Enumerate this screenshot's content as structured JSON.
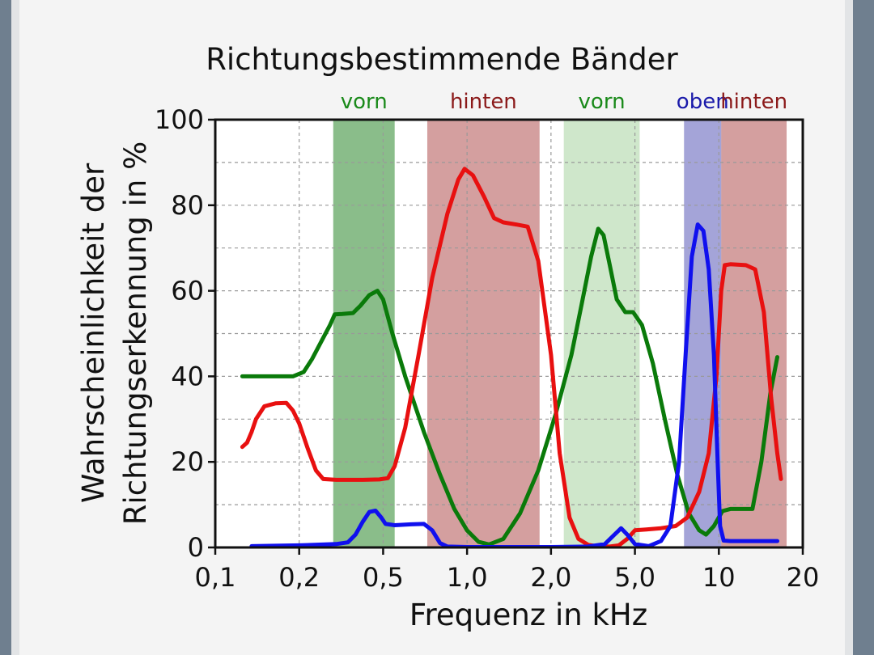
{
  "chart_data": {
    "type": "line",
    "title": "Richtungsbestimmende Bänder",
    "xlabel": "Frequenz in kHz",
    "ylabel_lines": [
      "Wahrscheinlichkeit der",
      "Richtungserkennung in %"
    ],
    "x_scale": "log",
    "ylim": [
      0,
      100
    ],
    "grid": true,
    "x_ticks": [
      {
        "value": 0.1,
        "label": "0,1"
      },
      {
        "value": 0.2,
        "label": "0,2"
      },
      {
        "value": 0.5,
        "label": "0,5"
      },
      {
        "value": 1.0,
        "label": "1,0"
      },
      {
        "value": 2.0,
        "label": "2,0"
      },
      {
        "value": 5.0,
        "label": "5,0"
      },
      {
        "value": 10,
        "label": "10"
      },
      {
        "value": 20,
        "label": "20"
      }
    ],
    "y_ticks": [
      {
        "value": 0,
        "label": "0"
      },
      {
        "value": 20,
        "label": "20"
      },
      {
        "value": 40,
        "label": "40"
      },
      {
        "value": 60,
        "label": "60"
      },
      {
        "value": 80,
        "label": "80"
      },
      {
        "value": 100,
        "label": "100"
      }
    ],
    "bands": [
      {
        "label": "vorn",
        "from": 0.29,
        "to": 0.55,
        "color": "#4c9a4c",
        "opacity": 0.65,
        "text_color": "#1a8a1a"
      },
      {
        "label": "hinten",
        "from": 0.72,
        "to": 1.82,
        "color": "#a02a2a",
        "opacity": 0.45,
        "text_color": "#8b1a1a"
      },
      {
        "label": "vorn",
        "from": 2.3,
        "to": 5.2,
        "color": "#a8d4a0",
        "opacity": 0.55,
        "text_color": "#1a8a1a"
      },
      {
        "label": "oben",
        "from": 7.5,
        "to": 10.2,
        "color": "#5a5ab8",
        "opacity": 0.55,
        "text_color": "#1a1aaa"
      },
      {
        "label": "hinten",
        "from": 10.2,
        "to": 17.5,
        "color": "#a02a2a",
        "opacity": 0.45,
        "text_color": "#8b1a1a"
      }
    ],
    "series": [
      {
        "color": "#0a7a0a",
        "points": [
          [
            0.125,
            40
          ],
          [
            0.16,
            40
          ],
          [
            0.19,
            40
          ],
          [
            0.21,
            41
          ],
          [
            0.23,
            44
          ],
          [
            0.26,
            49
          ],
          [
            0.28,
            52
          ],
          [
            0.295,
            54.5
          ],
          [
            0.32,
            54.6
          ],
          [
            0.36,
            54.8
          ],
          [
            0.39,
            56.5
          ],
          [
            0.43,
            59
          ],
          [
            0.47,
            60
          ],
          [
            0.5,
            58
          ],
          [
            0.54,
            50
          ],
          [
            0.6,
            40
          ],
          [
            0.7,
            27
          ],
          [
            0.8,
            17
          ],
          [
            0.9,
            9
          ],
          [
            1.0,
            4
          ],
          [
            1.1,
            1.3
          ],
          [
            1.2,
            0.7
          ],
          [
            1.35,
            2
          ],
          [
            1.55,
            8
          ],
          [
            1.8,
            18
          ],
          [
            2.1,
            31
          ],
          [
            2.5,
            45
          ],
          [
            2.8,
            57
          ],
          [
            3.1,
            68
          ],
          [
            3.35,
            74.5
          ],
          [
            3.55,
            73
          ],
          [
            3.8,
            66
          ],
          [
            4.1,
            58
          ],
          [
            4.5,
            55
          ],
          [
            4.9,
            55
          ],
          [
            5.3,
            52
          ],
          [
            5.8,
            43
          ],
          [
            6.4,
            30
          ],
          [
            7.1,
            17
          ],
          [
            7.8,
            8
          ],
          [
            8.5,
            4
          ],
          [
            9.0,
            3
          ],
          [
            9.6,
            5
          ],
          [
            10.3,
            8.5
          ],
          [
            11,
            9
          ],
          [
            12.5,
            9
          ],
          [
            13.2,
            9
          ],
          [
            14.2,
            20
          ],
          [
            15.3,
            36
          ],
          [
            16.2,
            44.5
          ]
        ]
      },
      {
        "color": "#e81010",
        "points": [
          [
            0.125,
            23.5
          ],
          [
            0.13,
            24.5
          ],
          [
            0.135,
            27
          ],
          [
            0.14,
            30
          ],
          [
            0.15,
            33
          ],
          [
            0.165,
            33.7
          ],
          [
            0.18,
            33.8
          ],
          [
            0.19,
            32
          ],
          [
            0.2,
            29
          ],
          [
            0.22,
            23
          ],
          [
            0.24,
            18
          ],
          [
            0.26,
            16
          ],
          [
            0.3,
            15.8
          ],
          [
            0.4,
            15.8
          ],
          [
            0.48,
            15.9
          ],
          [
            0.52,
            16.2
          ],
          [
            0.55,
            19
          ],
          [
            0.6,
            28
          ],
          [
            0.67,
            45
          ],
          [
            0.75,
            63
          ],
          [
            0.85,
            78
          ],
          [
            0.93,
            86
          ],
          [
            0.98,
            88.5
          ],
          [
            1.05,
            87
          ],
          [
            1.15,
            82
          ],
          [
            1.25,
            77
          ],
          [
            1.35,
            76
          ],
          [
            1.5,
            75.5
          ],
          [
            1.65,
            75
          ],
          [
            1.8,
            67
          ],
          [
            2.0,
            45
          ],
          [
            2.2,
            22
          ],
          [
            2.45,
            7
          ],
          [
            2.7,
            2
          ],
          [
            3.0,
            0.6
          ],
          [
            3.4,
            0.2
          ],
          [
            3.8,
            0.2
          ],
          [
            4.2,
            0.5
          ],
          [
            4.6,
            2
          ],
          [
            5.0,
            4
          ],
          [
            5.5,
            4.2
          ],
          [
            6.2,
            4.5
          ],
          [
            7.0,
            5
          ],
          [
            7.7,
            7
          ],
          [
            8.5,
            13
          ],
          [
            9.2,
            22
          ],
          [
            9.8,
            40
          ],
          [
            10.2,
            60
          ],
          [
            10.5,
            66
          ],
          [
            11,
            66.2
          ],
          [
            12.5,
            66
          ],
          [
            13.5,
            65
          ],
          [
            14.5,
            55
          ],
          [
            15.4,
            35
          ],
          [
            16.2,
            22
          ],
          [
            16.7,
            16
          ]
        ]
      },
      {
        "color": "#1010ee",
        "points": [
          [
            0.135,
            0.3
          ],
          [
            0.2,
            0.5
          ],
          [
            0.3,
            0.8
          ],
          [
            0.34,
            1.2
          ],
          [
            0.37,
            3
          ],
          [
            0.4,
            6
          ],
          [
            0.43,
            8.3
          ],
          [
            0.46,
            8.6
          ],
          [
            0.49,
            7
          ],
          [
            0.51,
            5.5
          ],
          [
            0.55,
            5.2
          ],
          [
            0.63,
            5.4
          ],
          [
            0.7,
            5.5
          ],
          [
            0.75,
            4
          ],
          [
            0.8,
            1
          ],
          [
            0.85,
            0.2
          ],
          [
            1,
            0.1
          ],
          [
            2,
            0.1
          ],
          [
            3,
            0.2
          ],
          [
            3.6,
            0.8
          ],
          [
            4.0,
            3
          ],
          [
            4.3,
            4.5
          ],
          [
            4.6,
            3
          ],
          [
            5.0,
            0.8
          ],
          [
            5.6,
            0.3
          ],
          [
            6.2,
            1.5
          ],
          [
            6.7,
            5
          ],
          [
            7.2,
            20
          ],
          [
            7.6,
            45
          ],
          [
            8.0,
            68
          ],
          [
            8.4,
            75.5
          ],
          [
            8.8,
            74
          ],
          [
            9.2,
            65
          ],
          [
            9.6,
            45
          ],
          [
            9.9,
            20
          ],
          [
            10.1,
            5
          ],
          [
            10.4,
            1.6
          ],
          [
            11,
            1.5
          ],
          [
            14,
            1.5
          ],
          [
            16.2,
            1.5
          ]
        ]
      }
    ]
  }
}
